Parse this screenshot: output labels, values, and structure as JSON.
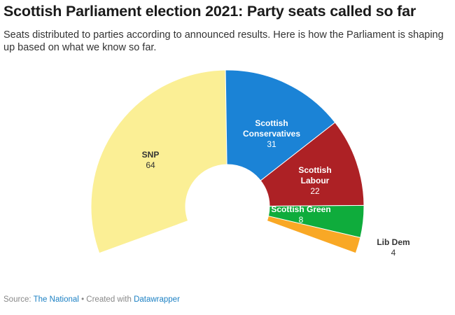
{
  "title": "Scottish Parliament election 2021: Party seats called so far",
  "subtitle": "Seats distributed to parties according to announced results. Here is how the Parliament is shaping up based on what we know so far.",
  "footer": {
    "source_label": "Source:",
    "source": "The National",
    "separator": "•",
    "created_label": "Created with",
    "tool": "Datawrapper"
  },
  "chart_data": {
    "type": "pie",
    "variant": "parliament-donut",
    "title": "Scottish Parliament election 2021: Party seats called so far",
    "categories": [
      "SNP",
      "Scottish Conservatives",
      "Scottish Labour",
      "Scottish Green",
      "Lib Dem"
    ],
    "values": [
      64,
      31,
      22,
      8,
      4
    ],
    "colors": [
      "#fbef95",
      "#1b83d6",
      "#ad2125",
      "#0fac3c",
      "#f9a825"
    ],
    "label_colors": [
      "#333333",
      "#ffffff",
      "#ffffff",
      "#ffffff",
      "#333333"
    ]
  }
}
